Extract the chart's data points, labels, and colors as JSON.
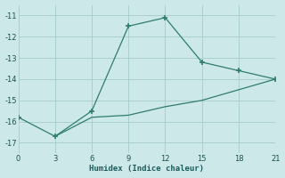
{
  "xlabel": "Humidex (Indice chaleur)",
  "bg_color": "#cce8e8",
  "line_color": "#2e7d6e",
  "grid_color": "#aacfcf",
  "xlim": [
    0,
    21
  ],
  "ylim": [
    -17.5,
    -10.5
  ],
  "xticks": [
    0,
    3,
    6,
    9,
    12,
    15,
    18,
    21
  ],
  "yticks": [
    -17,
    -16,
    -15,
    -14,
    -13,
    -12,
    -11
  ],
  "upper_x": [
    0,
    3,
    6,
    9,
    12,
    15,
    18,
    21
  ],
  "upper_y": [
    -15.8,
    -16.7,
    -15.5,
    -11.5,
    -11.1,
    -13.2,
    -13.6,
    -14.0
  ],
  "lower_x": [
    3,
    6,
    9,
    12,
    15,
    18,
    21
  ],
  "lower_y": [
    -16.7,
    -15.8,
    -15.7,
    -15.3,
    -15.0,
    -14.5,
    -14.0
  ]
}
